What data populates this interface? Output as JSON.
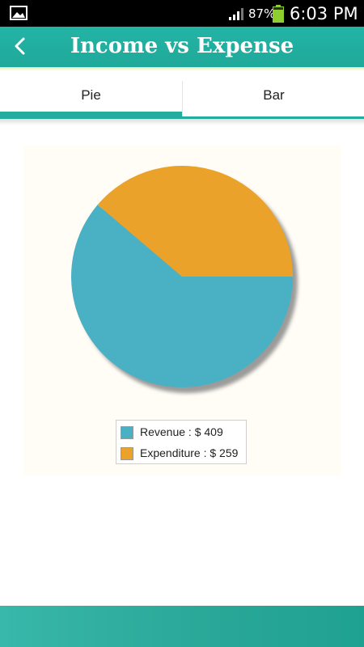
{
  "status_bar": {
    "battery_percent": "87%",
    "time": "6:03 PM",
    "icons": [
      "gallery-icon",
      "signal-icon",
      "battery-icon"
    ]
  },
  "header": {
    "title": "Income vs Expense",
    "back_icon": "chevron-left-icon"
  },
  "tabs": [
    {
      "label": "Pie",
      "selected": true
    },
    {
      "label": "Bar",
      "selected": false
    }
  ],
  "colors": {
    "accent": "#24ad9f",
    "revenue": "#4ab0c4",
    "expenditure": "#eaa22b",
    "chart_background": "#fffdf5"
  },
  "legend": {
    "items": [
      {
        "label": "Revenue : $ 409",
        "color": "#4ab0c4"
      },
      {
        "label": "Expenditure : $ 259",
        "color": "#eaa22b"
      }
    ]
  },
  "chart_data": {
    "type": "pie",
    "title": "",
    "categories": [
      "Revenue",
      "Expenditure"
    ],
    "values": [
      409,
      259
    ],
    "colors": [
      "#4ab0c4",
      "#eaa22b"
    ],
    "start_angle_deg": 0,
    "direction": "clockwise",
    "legend_position": "bottom"
  }
}
